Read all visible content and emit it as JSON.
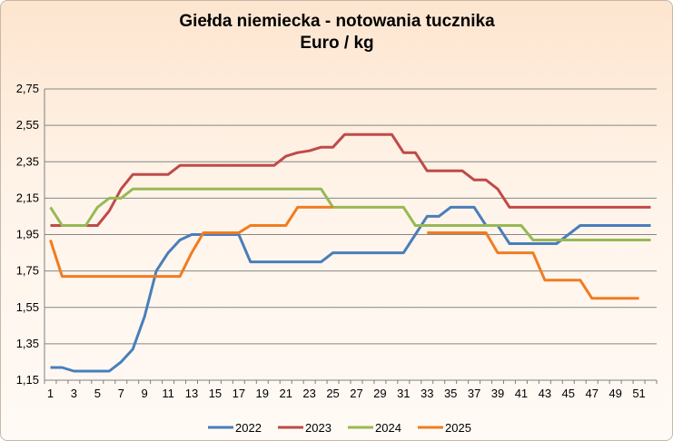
{
  "chart_data": {
    "type": "line",
    "title": "Giełda niemiecka  - notowania tucznika",
    "subtitle": "Euro / kg",
    "xlabel": "",
    "ylabel": "",
    "ylim": [
      1.15,
      2.75
    ],
    "yticks": [
      "1,15",
      "1,35",
      "1,55",
      "1,75",
      "1,95",
      "2,15",
      "2,35",
      "2,55",
      "2,75"
    ],
    "xticks": [
      "1",
      "3",
      "5",
      "7",
      "9",
      "11",
      "13",
      "15",
      "17",
      "19",
      "21",
      "23",
      "25",
      "27",
      "29",
      "31",
      "33",
      "35",
      "37",
      "39",
      "41",
      "43",
      "45",
      "47",
      "49",
      "51"
    ],
    "xlim": [
      1,
      52
    ],
    "grid": true,
    "legend_position": "bottom",
    "series": [
      {
        "name": "2022",
        "color": "#4a7ebb",
        "start_week": 1,
        "values": [
          1.22,
          1.22,
          1.2,
          1.2,
          1.2,
          1.2,
          1.25,
          1.32,
          1.5,
          1.75,
          1.85,
          1.92,
          1.95,
          1.95,
          1.95,
          1.95,
          1.95,
          1.8,
          1.8,
          1.8,
          1.8,
          1.8,
          1.8,
          1.8,
          1.85,
          1.85,
          1.85,
          1.85,
          1.85,
          1.85,
          1.85,
          1.95,
          2.05,
          2.05,
          2.1,
          2.1,
          2.1,
          2.0,
          2.0,
          1.9,
          1.9,
          1.9,
          1.9,
          1.9,
          1.95,
          2.0,
          2.0,
          2.0,
          2.0,
          2.0,
          2.0,
          2.0
        ]
      },
      {
        "name": "2023",
        "color": "#be4b48",
        "start_week": 1,
        "values": [
          2.0,
          2.0,
          2.0,
          2.0,
          2.0,
          2.08,
          2.2,
          2.28,
          2.28,
          2.28,
          2.28,
          2.33,
          2.33,
          2.33,
          2.33,
          2.33,
          2.33,
          2.33,
          2.33,
          2.33,
          2.38,
          2.4,
          2.41,
          2.43,
          2.43,
          2.5,
          2.5,
          2.5,
          2.5,
          2.5,
          2.4,
          2.4,
          2.3,
          2.3,
          2.3,
          2.3,
          2.25,
          2.25,
          2.2,
          2.1,
          2.1,
          2.1,
          2.1,
          2.1,
          2.1,
          2.1,
          2.1,
          2.1,
          2.1,
          2.1,
          2.1,
          2.1
        ]
      },
      {
        "name": "2024",
        "color": "#98b954",
        "start_week": 1,
        "values": [
          2.1,
          2.0,
          2.0,
          2.0,
          2.1,
          2.15,
          2.15,
          2.2,
          2.2,
          2.2,
          2.2,
          2.2,
          2.2,
          2.2,
          2.2,
          2.2,
          2.2,
          2.2,
          2.2,
          2.2,
          2.2,
          2.2,
          2.2,
          2.2,
          2.1,
          2.1,
          2.1,
          2.1,
          2.1,
          2.1,
          2.1,
          2.0,
          2.0,
          2.0,
          2.0,
          2.0,
          2.0,
          2.0,
          2.0,
          2.0,
          2.0,
          1.92,
          1.92,
          1.92,
          1.92,
          1.92,
          1.92,
          1.92,
          1.92,
          1.92,
          1.92,
          1.92
        ]
      },
      {
        "name": "2025",
        "color": "#f07c22",
        "start_week": 1,
        "values": [
          1.92,
          1.72,
          1.72,
          1.72,
          1.72,
          1.72,
          1.72,
          1.72,
          1.72,
          1.72,
          1.72,
          1.72,
          1.85,
          1.96,
          1.96,
          1.96,
          1.96,
          2.0,
          2.0,
          2.0,
          2.0,
          2.1,
          2.1,
          2.1,
          2.1
        ]
      },
      {
        "name": "2025",
        "color": "#f07c22",
        "start_week": 33,
        "values": [
          1.96,
          1.96,
          1.96,
          1.96,
          1.96,
          1.96,
          1.85,
          1.85,
          1.85,
          1.85,
          1.7,
          1.7,
          1.7,
          1.7,
          1.6,
          1.6,
          1.6,
          1.6,
          1.6
        ]
      }
    ],
    "legend": [
      {
        "name": "2022",
        "color": "#4a7ebb"
      },
      {
        "name": "2023",
        "color": "#be4b48"
      },
      {
        "name": "2024",
        "color": "#98b954"
      },
      {
        "name": "2025",
        "color": "#f07c22"
      }
    ]
  }
}
